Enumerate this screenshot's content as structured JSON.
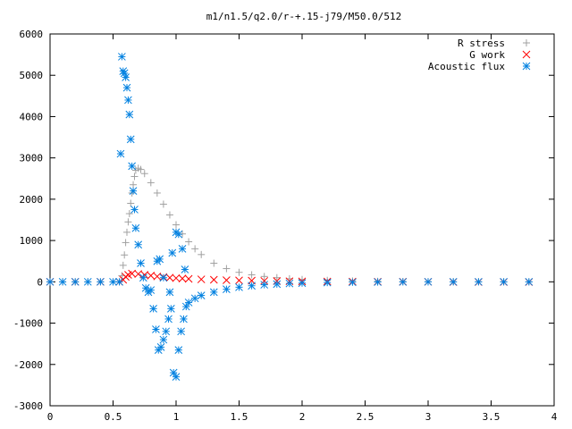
{
  "chart_data": {
    "type": "scatter",
    "title": "m1/n1.5/q2.0/r-+.15-j79/M50.0/512",
    "xlabel": "",
    "ylabel": "",
    "xlim": [
      0,
      4
    ],
    "ylim": [
      -3000,
      6000
    ],
    "xticks": [
      0,
      0.5,
      1,
      1.5,
      2,
      2.5,
      3,
      3.5,
      4
    ],
    "xtick_labels": [
      "0",
      "0.5",
      "1",
      "1.5",
      "2",
      "2.5",
      "3",
      "3.5",
      "4"
    ],
    "yticks": [
      -3000,
      -2000,
      -1000,
      0,
      1000,
      2000,
      3000,
      4000,
      5000,
      6000
    ],
    "ytick_labels": [
      "-3000",
      "-2000",
      "-1000",
      "0",
      "1000",
      "2000",
      "3000",
      "4000",
      "5000",
      "6000"
    ],
    "grid": false,
    "legend_position": "top-right",
    "series": [
      {
        "name": "R stress",
        "marker": "plus",
        "color": "#a0a0a0",
        "points": [
          [
            0.0,
            0
          ],
          [
            0.1,
            0
          ],
          [
            0.2,
            0
          ],
          [
            0.3,
            0
          ],
          [
            0.4,
            0
          ],
          [
            0.5,
            0
          ],
          [
            0.55,
            0
          ],
          [
            0.57,
            150
          ],
          [
            0.58,
            400
          ],
          [
            0.59,
            650
          ],
          [
            0.6,
            950
          ],
          [
            0.61,
            1200
          ],
          [
            0.62,
            1450
          ],
          [
            0.63,
            1650
          ],
          [
            0.64,
            1900
          ],
          [
            0.65,
            2150
          ],
          [
            0.66,
            2350
          ],
          [
            0.67,
            2550
          ],
          [
            0.68,
            2700
          ],
          [
            0.7,
            2750
          ],
          [
            0.72,
            2720
          ],
          [
            0.75,
            2620
          ],
          [
            0.8,
            2400
          ],
          [
            0.85,
            2150
          ],
          [
            0.9,
            1880
          ],
          [
            0.95,
            1620
          ],
          [
            1.0,
            1380
          ],
          [
            1.05,
            1160
          ],
          [
            1.1,
            970
          ],
          [
            1.15,
            800
          ],
          [
            1.2,
            660
          ],
          [
            1.3,
            450
          ],
          [
            1.4,
            320
          ],
          [
            1.5,
            230
          ],
          [
            1.6,
            170
          ],
          [
            1.7,
            130
          ],
          [
            1.8,
            100
          ],
          [
            1.9,
            75
          ],
          [
            2.0,
            55
          ],
          [
            2.2,
            35
          ],
          [
            2.4,
            20
          ],
          [
            2.6,
            12
          ],
          [
            2.8,
            8
          ],
          [
            3.0,
            5
          ],
          [
            3.2,
            3
          ],
          [
            3.4,
            2
          ],
          [
            3.6,
            1
          ],
          [
            3.8,
            0
          ]
        ]
      },
      {
        "name": "G work",
        "marker": "cross",
        "color": "#ff0000",
        "points": [
          [
            0.0,
            0
          ],
          [
            0.2,
            0
          ],
          [
            0.4,
            0
          ],
          [
            0.55,
            0
          ],
          [
            0.58,
            50
          ],
          [
            0.6,
            120
          ],
          [
            0.62,
            170
          ],
          [
            0.65,
            200
          ],
          [
            0.7,
            190
          ],
          [
            0.75,
            170
          ],
          [
            0.8,
            150
          ],
          [
            0.85,
            130
          ],
          [
            0.9,
            115
          ],
          [
            0.95,
            100
          ],
          [
            1.0,
            90
          ],
          [
            1.05,
            80
          ],
          [
            1.1,
            72
          ],
          [
            1.2,
            60
          ],
          [
            1.3,
            50
          ],
          [
            1.4,
            40
          ],
          [
            1.5,
            35
          ],
          [
            1.6,
            28
          ],
          [
            1.7,
            22
          ],
          [
            1.8,
            18
          ],
          [
            1.9,
            14
          ],
          [
            2.0,
            10
          ],
          [
            2.2,
            7
          ],
          [
            2.4,
            4
          ],
          [
            2.6,
            2
          ],
          [
            2.8,
            1
          ],
          [
            3.0,
            0
          ],
          [
            3.2,
            -5
          ],
          [
            3.4,
            -5
          ],
          [
            3.6,
            -5
          ],
          [
            3.8,
            -5
          ]
        ]
      },
      {
        "name": "Acoustic flux",
        "marker": "star",
        "color": "#0080e0",
        "points": [
          [
            0.0,
            0
          ],
          [
            0.1,
            0
          ],
          [
            0.2,
            0
          ],
          [
            0.3,
            0
          ],
          [
            0.4,
            0
          ],
          [
            0.5,
            0
          ],
          [
            0.55,
            0
          ],
          [
            0.56,
            3100
          ],
          [
            0.57,
            5450
          ],
          [
            0.58,
            5100
          ],
          [
            0.59,
            5050
          ],
          [
            0.6,
            4950
          ],
          [
            0.61,
            4700
          ],
          [
            0.62,
            4400
          ],
          [
            0.63,
            4050
          ],
          [
            0.64,
            3450
          ],
          [
            0.65,
            2800
          ],
          [
            0.66,
            2200
          ],
          [
            0.67,
            1750
          ],
          [
            0.68,
            1300
          ],
          [
            0.7,
            900
          ],
          [
            0.72,
            450
          ],
          [
            0.74,
            100
          ],
          [
            0.76,
            -150
          ],
          [
            0.78,
            -250
          ],
          [
            0.8,
            -200
          ],
          [
            0.82,
            -650
          ],
          [
            0.84,
            -1150
          ],
          [
            0.86,
            -1650
          ],
          [
            0.88,
            -1580
          ],
          [
            0.9,
            -1400
          ],
          [
            0.92,
            -1200
          ],
          [
            0.94,
            -900
          ],
          [
            0.96,
            -650
          ],
          [
            0.98,
            -2200
          ],
          [
            1.0,
            -2300
          ],
          [
            1.02,
            -1650
          ],
          [
            1.04,
            -1200
          ],
          [
            1.06,
            -900
          ],
          [
            1.08,
            -600
          ],
          [
            1.1,
            -500
          ],
          [
            1.15,
            -400
          ],
          [
            1.2,
            -330
          ],
          [
            1.3,
            -250
          ],
          [
            1.4,
            -180
          ],
          [
            1.5,
            -130
          ],
          [
            1.6,
            -95
          ],
          [
            1.7,
            -70
          ],
          [
            1.8,
            -55
          ],
          [
            1.9,
            -40
          ],
          [
            2.0,
            -30
          ],
          [
            2.2,
            -18
          ],
          [
            2.4,
            -10
          ],
          [
            2.6,
            -5
          ],
          [
            2.8,
            -2
          ],
          [
            3.0,
            0
          ],
          [
            3.2,
            0
          ],
          [
            3.4,
            0
          ],
          [
            3.6,
            0
          ],
          [
            3.8,
            0
          ],
          [
            0.85,
            500
          ],
          [
            0.87,
            550
          ],
          [
            0.9,
            100
          ],
          [
            0.95,
            -250
          ],
          [
            0.97,
            700
          ],
          [
            1.0,
            1200
          ],
          [
            1.02,
            1150
          ],
          [
            1.05,
            800
          ],
          [
            1.07,
            300
          ]
        ]
      }
    ]
  }
}
